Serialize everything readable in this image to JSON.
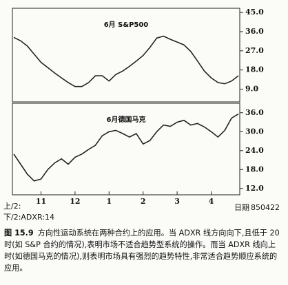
{
  "chart_data": [
    {
      "type": "line",
      "title": "6月 S&P500",
      "series": [
        {
          "color": "#222222",
          "values": [
            33.3,
            31.7,
            29.2,
            25.4,
            21.6,
            19.1,
            16.6,
            14.3,
            12.1,
            10.2,
            10.2,
            12.1,
            15.3,
            15.3,
            12.8,
            15.9,
            17.5,
            19.7,
            22.2,
            24.8,
            28.6,
            33.0,
            33.9,
            32.4,
            31.1,
            29.8,
            26.7,
            22.2,
            17.5,
            14.3,
            12.1,
            11.5,
            12.8,
            15.3
          ]
        }
      ],
      "ylim": [
        3,
        47
      ],
      "yticks": [
        {
          "value": 45,
          "label": "45.0"
        },
        {
          "value": 36,
          "label": "36.0"
        },
        {
          "value": 27,
          "label": "27.0"
        },
        {
          "value": 18,
          "label": "18.0"
        },
        {
          "value": 9,
          "label": "9.0"
        }
      ]
    },
    {
      "type": "line",
      "title": "6月德国马克",
      "categories": [
        null,
        null,
        null,
        null,
        "11",
        null,
        null,
        null,
        null,
        "12",
        null,
        null,
        null,
        null,
        "1",
        null,
        null,
        null,
        null,
        "2",
        null,
        null,
        null,
        null,
        "3",
        null,
        null,
        null,
        null,
        "4",
        null,
        null,
        null,
        null
      ],
      "series": [
        {
          "color": "#222222",
          "values": [
            22.9,
            19.7,
            16.5,
            14.4,
            15.0,
            18.0,
            20.1,
            21.4,
            19.7,
            21.9,
            22.9,
            24.4,
            25.7,
            28.7,
            30.0,
            30.4,
            29.4,
            28.3,
            29.4,
            26.1,
            27.2,
            30.0,
            32.1,
            31.7,
            33.0,
            33.6,
            32.1,
            32.6,
            31.5,
            30.0,
            28.3,
            30.4,
            34.3,
            35.6
          ]
        }
      ],
      "ylim": [
        10,
        39
      ],
      "yticks": [
        {
          "value": 36,
          "label": "36.0"
        },
        {
          "value": 30,
          "label": "30.0"
        },
        {
          "value": 24,
          "label": "24.0"
        },
        {
          "value": 18,
          "label": "18.0"
        },
        {
          "value": 12,
          "label": "12.0"
        }
      ]
    }
  ],
  "figure": {
    "upper_label": "上/2:",
    "lower_label": "下/2:ADXR:14",
    "date_label": "日期",
    "date_value": "850422",
    "caption_label": "图 15.9",
    "caption_text": "方向性运动系统在两种合约上的应用。当 ADXR 线方向向下,且低于 20 时(如 S&P 合约的情况),表明市场不适合趋势型系统的操作。而当 ADXR 线向上时(如德国马克的情况),则表明市场具有强烈的趋势特性,非常适合趋势顺应系统的应用。"
  }
}
